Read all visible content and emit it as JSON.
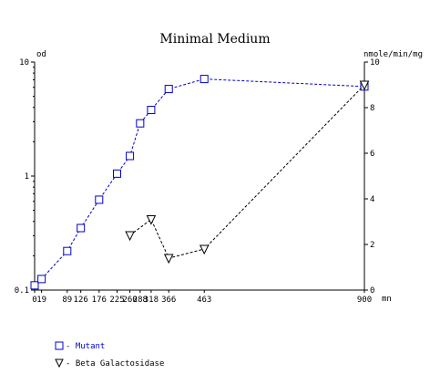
{
  "chart_data": {
    "type": "line",
    "title": "Minimal Medium",
    "left_axis": {
      "label": "od",
      "scale": "log",
      "range": [
        0.1,
        10
      ],
      "ticks": [
        {
          "value": 0.1,
          "label": "0.1"
        },
        {
          "value": 1,
          "label": "1"
        },
        {
          "value": 10,
          "label": "10"
        }
      ]
    },
    "right_axis": {
      "label": "nmole/min/mg",
      "scale": "linear",
      "range": [
        0,
        10
      ],
      "ticks": [
        {
          "value": 0,
          "label": "0"
        },
        {
          "value": 2,
          "label": "2"
        },
        {
          "value": 4,
          "label": "4"
        },
        {
          "value": 6,
          "label": "6"
        },
        {
          "value": 8,
          "label": "8"
        },
        {
          "value": 10,
          "label": "10"
        }
      ]
    },
    "x_axis": {
      "unit_label": "mn",
      "range": [
        0,
        900
      ],
      "tick_labels": [
        "0",
        "19",
        "89",
        "126",
        "176",
        "225",
        "260",
        "288",
        "318",
        "366",
        "463",
        "900"
      ]
    },
    "series": [
      {
        "name": "Mutant",
        "axis": "left",
        "color": "#0000cc",
        "marker": "square",
        "x": [
          0,
          19,
          89,
          126,
          176,
          225,
          260,
          288,
          318,
          366,
          463,
          900
        ],
        "y": [
          0.11,
          0.125,
          0.22,
          0.35,
          0.62,
          1.05,
          1.5,
          2.9,
          3.8,
          5.8,
          7.1,
          6.1
        ]
      },
      {
        "name": "Beta Galactosidase",
        "axis": "right",
        "color": "#000000",
        "marker": "triangle-down",
        "x": [
          260,
          318,
          366,
          463,
          900
        ],
        "y": [
          2.4,
          3.1,
          1.4,
          1.8,
          9.0
        ]
      }
    ],
    "legend": {
      "position": "bottom-left",
      "entries": [
        {
          "label": "- Mutant",
          "series": "Mutant"
        },
        {
          "label": "- Beta Galactosidase",
          "series": "Beta Galactosidase"
        }
      ]
    },
    "grid": false
  }
}
